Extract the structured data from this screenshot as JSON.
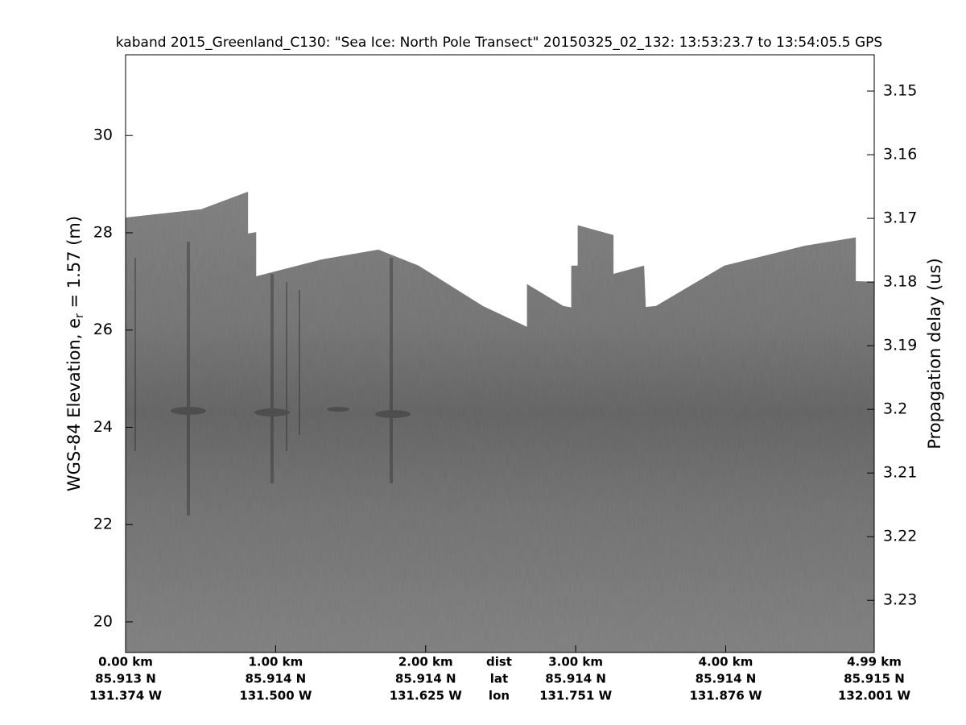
{
  "chart_data": {
    "type": "area",
    "title": "kaband 2015_Greenland_C130: \"Sea Ice: North Pole Transect\"  20150325_02_132: 13:53:23.7 to 13:54:05.5 GPS",
    "ylabel": "WGS-84 Elevation, e",
    "ylabel_sub": "r",
    "ylabel_rest": " = 1.57 (m)",
    "y2label": "Propagation delay (us)",
    "x": [
      0,
      0.504,
      0.815,
      0.815,
      0.869,
      0.869,
      1.309,
      1.685,
      1.953,
      2.382,
      2.677,
      2.677,
      2.918,
      2.972,
      2.972,
      3.015,
      3.015,
      3.251,
      3.251,
      3.455,
      3.466,
      3.535,
      3.991,
      4.528,
      4.866,
      4.866,
      4.989
    ],
    "values": [
      28.31,
      28.48,
      28.84,
      27.98,
      28.01,
      27.1,
      27.45,
      27.65,
      27.32,
      26.49,
      26.06,
      26.94,
      26.49,
      26.46,
      27.32,
      27.32,
      28.15,
      27.95,
      27.15,
      27.32,
      26.47,
      26.49,
      27.32,
      27.73,
      27.9,
      27.0,
      26.99
    ],
    "color": "#7c7c7c",
    "xlim": [
      0,
      4.99
    ],
    "xticks": [
      {
        "value": 0,
        "label": "0.00 km"
      },
      {
        "value": 1,
        "label": "1.00 km"
      },
      {
        "value": 2,
        "label": "2.00 km"
      },
      {
        "value": 3,
        "label": "3.00 km"
      },
      {
        "value": 4,
        "label": "4.00 km"
      },
      {
        "value": 4.99,
        "label": "4.99 km"
      }
    ],
    "xtick_lat": [
      "85.913 N",
      "85.914 N",
      "85.914 N",
      "85.914 N",
      "85.914 N",
      "85.915 N"
    ],
    "xtick_lon": [
      "131.374 W",
      "131.500 W",
      "131.625 W",
      "131.751 W",
      "131.876 W",
      "132.001 W"
    ],
    "x_row_labels": [
      "dist",
      "lat",
      "lon"
    ],
    "ylim": [
      19.37,
      31.66
    ],
    "yticks": [
      20,
      22,
      24,
      26,
      28,
      30
    ],
    "y2lim": [
      3.2382,
      3.1443
    ],
    "y2ticks": [
      3.15,
      3.16,
      3.17,
      3.18,
      3.19,
      3.2,
      3.21,
      3.22,
      3.23
    ]
  }
}
